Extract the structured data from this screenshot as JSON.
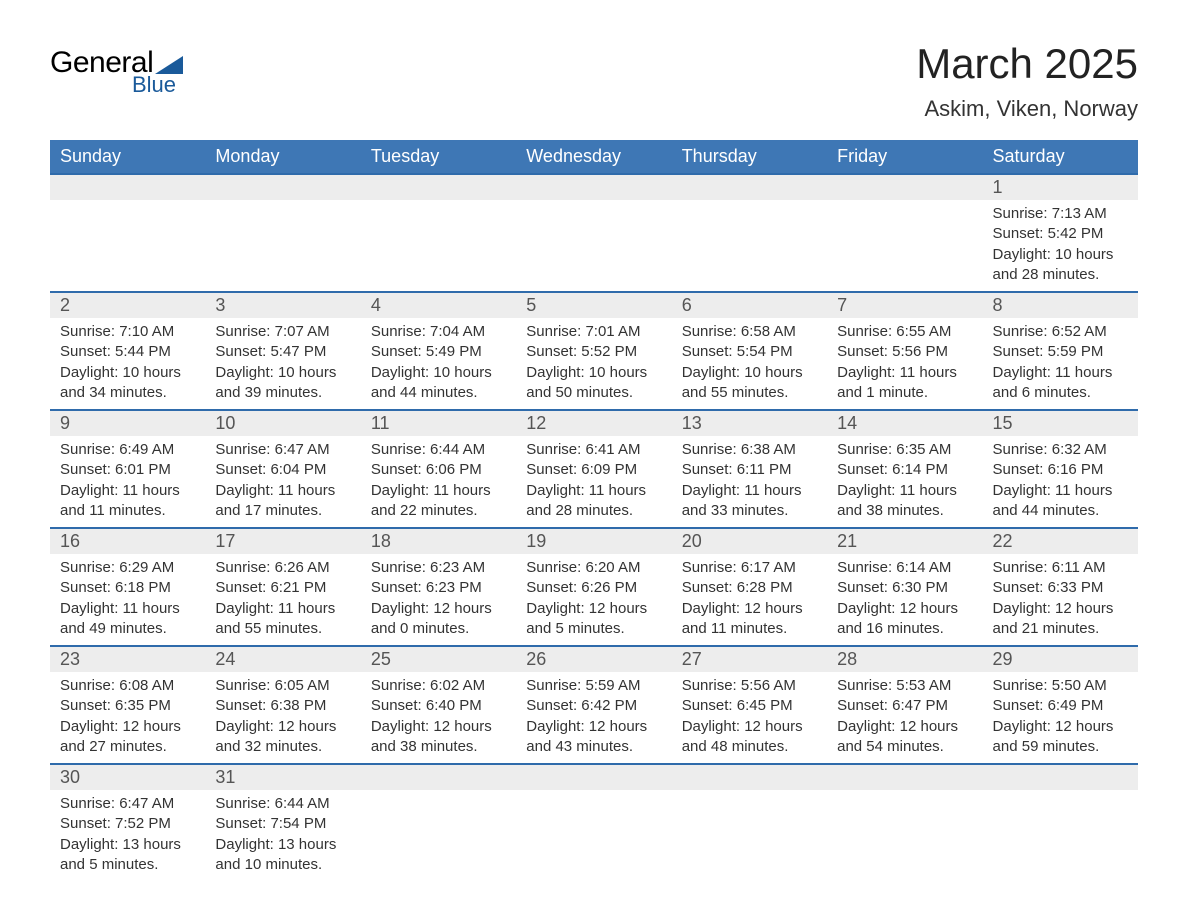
{
  "brand": {
    "word1": "General",
    "word2": "Blue",
    "word1_color": "#000000",
    "word2_color": "#1a5a9a",
    "triangle_color": "#1a5a9a"
  },
  "title": "March 2025",
  "location": "Askim, Viken, Norway",
  "colors": {
    "header_bg": "#3e77b5",
    "header_text": "#ffffff",
    "row_divider": "#2f6bab",
    "daynum_bg": "#ededed",
    "body_text": "#333333",
    "daynum_text": "#555555",
    "page_bg": "#ffffff"
  },
  "fonts": {
    "title_size_pt": 32,
    "location_size_pt": 17,
    "dayheader_size_pt": 14,
    "daynum_size_pt": 14,
    "detail_size_pt": 11
  },
  "day_headers": [
    "Sunday",
    "Monday",
    "Tuesday",
    "Wednesday",
    "Thursday",
    "Friday",
    "Saturday"
  ],
  "weeks": [
    [
      null,
      null,
      null,
      null,
      null,
      null,
      {
        "n": "1",
        "sunrise": "7:13 AM",
        "sunset": "5:42 PM",
        "day_h": "10",
        "day_m": "28"
      }
    ],
    [
      {
        "n": "2",
        "sunrise": "7:10 AM",
        "sunset": "5:44 PM",
        "day_h": "10",
        "day_m": "34"
      },
      {
        "n": "3",
        "sunrise": "7:07 AM",
        "sunset": "5:47 PM",
        "day_h": "10",
        "day_m": "39"
      },
      {
        "n": "4",
        "sunrise": "7:04 AM",
        "sunset": "5:49 PM",
        "day_h": "10",
        "day_m": "44"
      },
      {
        "n": "5",
        "sunrise": "7:01 AM",
        "sunset": "5:52 PM",
        "day_h": "10",
        "day_m": "50"
      },
      {
        "n": "6",
        "sunrise": "6:58 AM",
        "sunset": "5:54 PM",
        "day_h": "10",
        "day_m": "55"
      },
      {
        "n": "7",
        "sunrise": "6:55 AM",
        "sunset": "5:56 PM",
        "day_h": "11",
        "day_m": "1",
        "m_word": "minute"
      },
      {
        "n": "8",
        "sunrise": "6:52 AM",
        "sunset": "5:59 PM",
        "day_h": "11",
        "day_m": "6"
      }
    ],
    [
      {
        "n": "9",
        "sunrise": "6:49 AM",
        "sunset": "6:01 PM",
        "day_h": "11",
        "day_m": "11"
      },
      {
        "n": "10",
        "sunrise": "6:47 AM",
        "sunset": "6:04 PM",
        "day_h": "11",
        "day_m": "17"
      },
      {
        "n": "11",
        "sunrise": "6:44 AM",
        "sunset": "6:06 PM",
        "day_h": "11",
        "day_m": "22"
      },
      {
        "n": "12",
        "sunrise": "6:41 AM",
        "sunset": "6:09 PM",
        "day_h": "11",
        "day_m": "28"
      },
      {
        "n": "13",
        "sunrise": "6:38 AM",
        "sunset": "6:11 PM",
        "day_h": "11",
        "day_m": "33"
      },
      {
        "n": "14",
        "sunrise": "6:35 AM",
        "sunset": "6:14 PM",
        "day_h": "11",
        "day_m": "38"
      },
      {
        "n": "15",
        "sunrise": "6:32 AM",
        "sunset": "6:16 PM",
        "day_h": "11",
        "day_m": "44"
      }
    ],
    [
      {
        "n": "16",
        "sunrise": "6:29 AM",
        "sunset": "6:18 PM",
        "day_h": "11",
        "day_m": "49"
      },
      {
        "n": "17",
        "sunrise": "6:26 AM",
        "sunset": "6:21 PM",
        "day_h": "11",
        "day_m": "55"
      },
      {
        "n": "18",
        "sunrise": "6:23 AM",
        "sunset": "6:23 PM",
        "day_h": "12",
        "day_m": "0"
      },
      {
        "n": "19",
        "sunrise": "6:20 AM",
        "sunset": "6:26 PM",
        "day_h": "12",
        "day_m": "5"
      },
      {
        "n": "20",
        "sunrise": "6:17 AM",
        "sunset": "6:28 PM",
        "day_h": "12",
        "day_m": "11"
      },
      {
        "n": "21",
        "sunrise": "6:14 AM",
        "sunset": "6:30 PM",
        "day_h": "12",
        "day_m": "16"
      },
      {
        "n": "22",
        "sunrise": "6:11 AM",
        "sunset": "6:33 PM",
        "day_h": "12",
        "day_m": "21"
      }
    ],
    [
      {
        "n": "23",
        "sunrise": "6:08 AM",
        "sunset": "6:35 PM",
        "day_h": "12",
        "day_m": "27"
      },
      {
        "n": "24",
        "sunrise": "6:05 AM",
        "sunset": "6:38 PM",
        "day_h": "12",
        "day_m": "32"
      },
      {
        "n": "25",
        "sunrise": "6:02 AM",
        "sunset": "6:40 PM",
        "day_h": "12",
        "day_m": "38"
      },
      {
        "n": "26",
        "sunrise": "5:59 AM",
        "sunset": "6:42 PM",
        "day_h": "12",
        "day_m": "43"
      },
      {
        "n": "27",
        "sunrise": "5:56 AM",
        "sunset": "6:45 PM",
        "day_h": "12",
        "day_m": "48"
      },
      {
        "n": "28",
        "sunrise": "5:53 AM",
        "sunset": "6:47 PM",
        "day_h": "12",
        "day_m": "54"
      },
      {
        "n": "29",
        "sunrise": "5:50 AM",
        "sunset": "6:49 PM",
        "day_h": "12",
        "day_m": "59"
      }
    ],
    [
      {
        "n": "30",
        "sunrise": "6:47 AM",
        "sunset": "7:52 PM",
        "day_h": "13",
        "day_m": "5"
      },
      {
        "n": "31",
        "sunrise": "6:44 AM",
        "sunset": "7:54 PM",
        "day_h": "13",
        "day_m": "10"
      },
      null,
      null,
      null,
      null,
      null
    ]
  ],
  "labels": {
    "sunrise": "Sunrise",
    "sunset": "Sunset",
    "daylight": "Daylight",
    "hours": "hours",
    "and": "and",
    "minutes": "minutes",
    "minute": "minute"
  }
}
